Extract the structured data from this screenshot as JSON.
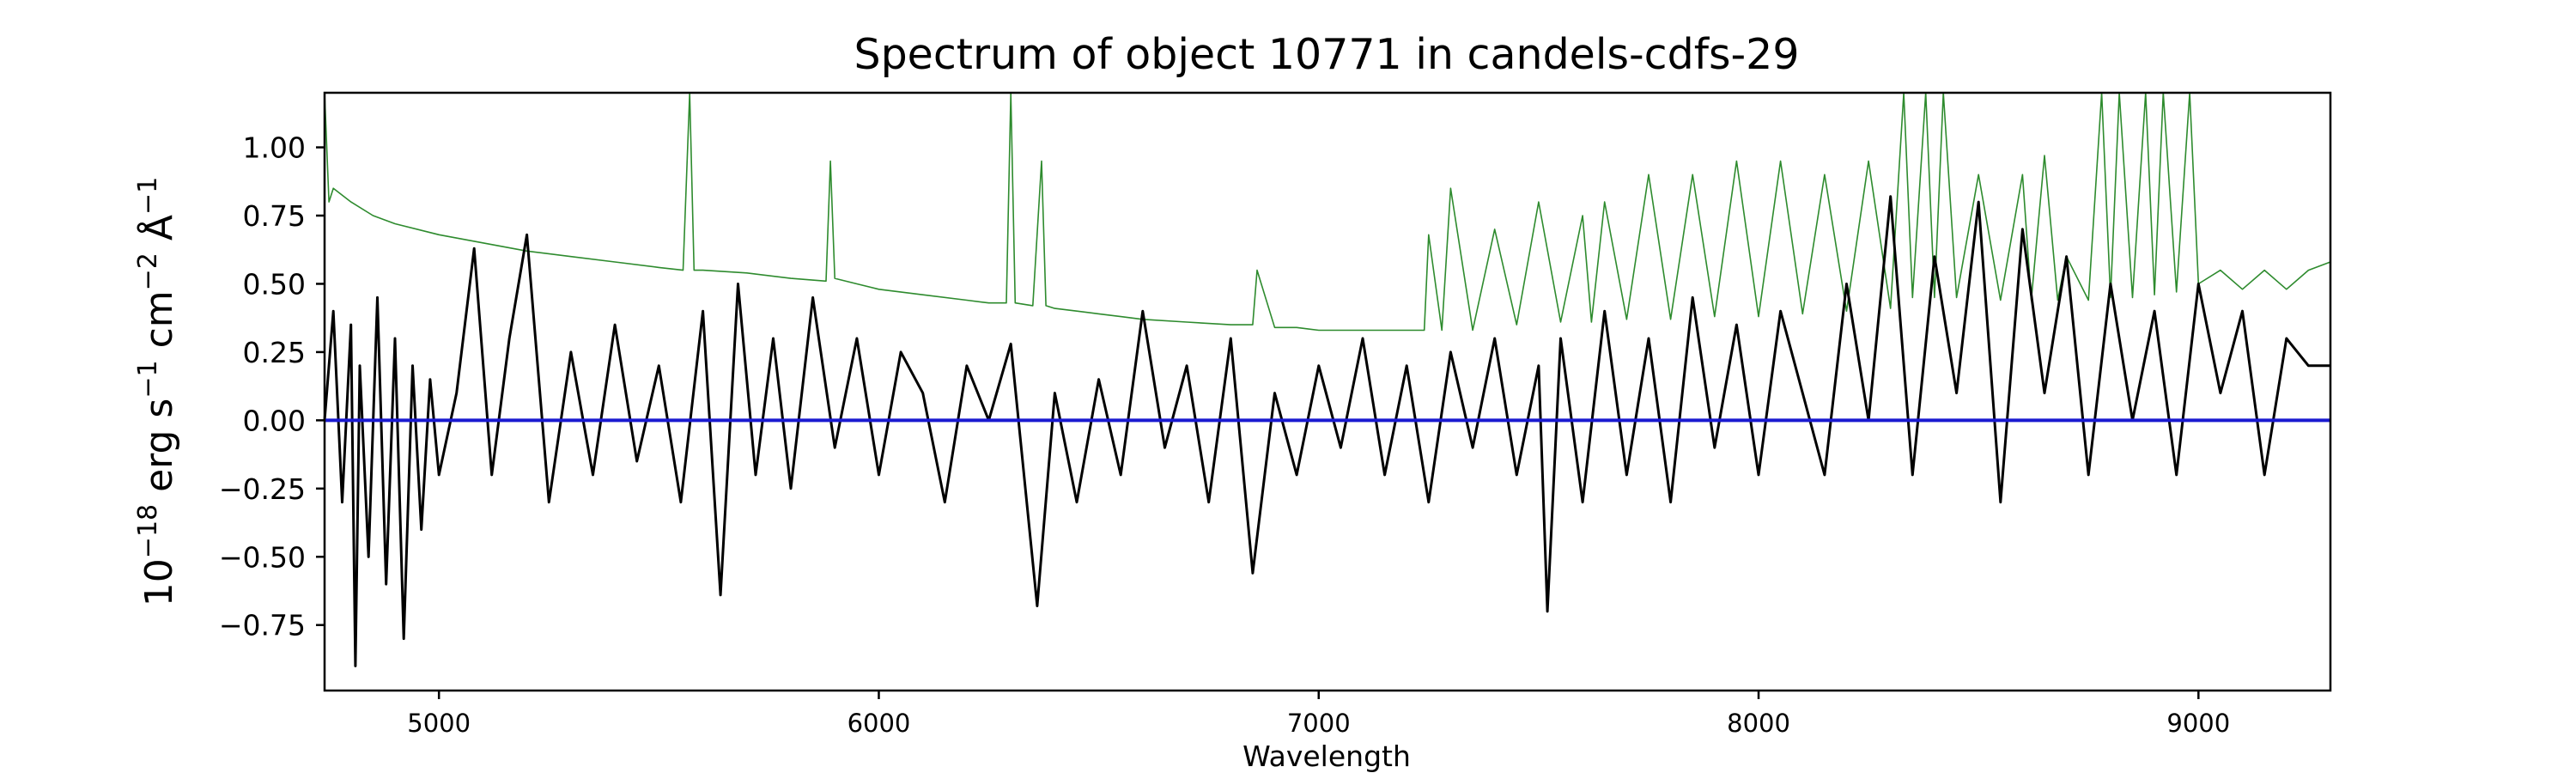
{
  "chart_data": {
    "type": "line",
    "title": "Spectrum of object 10771 in candels-cdfs-29",
    "xlabel": "Wavelength",
    "ylabel": {
      "base": "10",
      "exp1": "−18",
      "erg": " erg s",
      "exp2": "−1",
      "cm": " cm",
      "exp3": "−2",
      "ang": " Å",
      "exp4": "−1"
    },
    "xlim": [
      4740,
      9300
    ],
    "ylim": [
      -0.99,
      1.2
    ],
    "xticks": [
      {
        "value": 5000,
        "label": "5000"
      },
      {
        "value": 6000,
        "label": "6000"
      },
      {
        "value": 7000,
        "label": "7000"
      },
      {
        "value": 8000,
        "label": "8000"
      },
      {
        "value": 9000,
        "label": "9000"
      }
    ],
    "yticks": [
      {
        "value": -0.75,
        "label": "−0.75"
      },
      {
        "value": -0.5,
        "label": "−0.50"
      },
      {
        "value": -0.25,
        "label": "−0.25"
      },
      {
        "value": 0.0,
        "label": "0.00"
      },
      {
        "value": 0.25,
        "label": "0.25"
      },
      {
        "value": 0.5,
        "label": "0.50"
      },
      {
        "value": 0.75,
        "label": "0.75"
      },
      {
        "value": 1.0,
        "label": "1.00"
      }
    ],
    "grid": false,
    "series": [
      {
        "role": "flux",
        "color": "#000000",
        "x": [
          4740,
          4760,
          4780,
          4800,
          4810,
          4820,
          4840,
          4860,
          4880,
          4900,
          4920,
          4940,
          4960,
          4980,
          5000,
          5040,
          5080,
          5120,
          5160,
          5200,
          5250,
          5300,
          5350,
          5400,
          5450,
          5500,
          5550,
          5600,
          5640,
          5680,
          5720,
          5760,
          5800,
          5850,
          5900,
          5950,
          6000,
          6050,
          6100,
          6150,
          6200,
          6250,
          6300,
          6360,
          6400,
          6450,
          6500,
          6550,
          6600,
          6650,
          6700,
          6750,
          6800,
          6850,
          6900,
          6950,
          7000,
          7050,
          7100,
          7150,
          7200,
          7250,
          7300,
          7350,
          7400,
          7450,
          7500,
          7520,
          7550,
          7600,
          7650,
          7700,
          7750,
          7800,
          7850,
          7900,
          7950,
          8000,
          8050,
          8100,
          8150,
          8200,
          8250,
          8300,
          8350,
          8400,
          8450,
          8500,
          8550,
          8600,
          8650,
          8700,
          8750,
          8800,
          8850,
          8900,
          8950,
          9000,
          9050,
          9100,
          9150,
          9200,
          9250,
          9300
        ],
        "y": [
          0.0,
          0.4,
          -0.3,
          0.35,
          -0.9,
          0.2,
          -0.5,
          0.45,
          -0.6,
          0.3,
          -0.8,
          0.2,
          -0.4,
          0.15,
          -0.2,
          0.1,
          0.63,
          -0.2,
          0.3,
          0.68,
          -0.3,
          0.25,
          -0.2,
          0.35,
          -0.15,
          0.2,
          -0.3,
          0.4,
          -0.64,
          0.5,
          -0.2,
          0.3,
          -0.25,
          0.45,
          -0.1,
          0.3,
          -0.2,
          0.25,
          0.1,
          -0.3,
          0.2,
          0.0,
          0.28,
          -0.68,
          0.1,
          -0.3,
          0.15,
          -0.2,
          0.4,
          -0.1,
          0.2,
          -0.3,
          0.3,
          -0.56,
          0.1,
          -0.2,
          0.2,
          -0.1,
          0.3,
          -0.2,
          0.2,
          -0.3,
          0.25,
          -0.1,
          0.3,
          -0.2,
          0.2,
          -0.7,
          0.3,
          -0.3,
          0.4,
          -0.2,
          0.3,
          -0.3,
          0.45,
          -0.1,
          0.35,
          -0.2,
          0.4,
          0.1,
          -0.2,
          0.5,
          0.0,
          0.82,
          -0.2,
          0.6,
          0.1,
          0.8,
          -0.3,
          0.7,
          0.1,
          0.6,
          -0.2,
          0.5,
          0.0,
          0.4,
          -0.2,
          0.5,
          0.1,
          0.4,
          -0.2,
          0.3,
          0.2,
          0.2
        ]
      },
      {
        "role": "error",
        "color": "#2e8b2e",
        "x": [
          4740,
          4750,
          4760,
          4800,
          4850,
          4900,
          5000,
          5100,
          5200,
          5300,
          5400,
          5500,
          5555,
          5570,
          5580,
          5600,
          5700,
          5800,
          5880,
          5890,
          5900,
          5950,
          6000,
          6100,
          6200,
          6250,
          6290,
          6300,
          6310,
          6350,
          6370,
          6380,
          6400,
          6450,
          6500,
          6550,
          6600,
          6700,
          6800,
          6850,
          6860,
          6900,
          6950,
          7000,
          7100,
          7200,
          7240,
          7250,
          7280,
          7300,
          7350,
          7400,
          7450,
          7500,
          7550,
          7600,
          7620,
          7650,
          7700,
          7750,
          7800,
          7850,
          7900,
          7950,
          8000,
          8050,
          8100,
          8150,
          8200,
          8250,
          8300,
          8330,
          8350,
          8380,
          8400,
          8420,
          8450,
          8500,
          8550,
          8600,
          8620,
          8650,
          8680,
          8700,
          8750,
          8780,
          8800,
          8820,
          8850,
          8880,
          8900,
          8920,
          8950,
          8980,
          9000,
          9050,
          9100,
          9150,
          9200,
          9250,
          9300
        ],
        "y": [
          1.2,
          0.8,
          0.85,
          0.8,
          0.75,
          0.72,
          0.68,
          0.65,
          0.62,
          0.6,
          0.58,
          0.56,
          0.55,
          1.2,
          0.55,
          0.55,
          0.54,
          0.52,
          0.51,
          0.95,
          0.52,
          0.5,
          0.48,
          0.46,
          0.44,
          0.43,
          0.43,
          1.2,
          0.43,
          0.42,
          0.95,
          0.42,
          0.41,
          0.4,
          0.39,
          0.38,
          0.37,
          0.36,
          0.35,
          0.35,
          0.55,
          0.34,
          0.34,
          0.33,
          0.33,
          0.33,
          0.33,
          0.68,
          0.33,
          0.85,
          0.33,
          0.7,
          0.35,
          0.8,
          0.36,
          0.75,
          0.36,
          0.8,
          0.37,
          0.9,
          0.37,
          0.9,
          0.38,
          0.95,
          0.38,
          0.95,
          0.39,
          0.9,
          0.4,
          0.95,
          0.41,
          1.2,
          0.45,
          1.2,
          0.45,
          1.2,
          0.45,
          0.9,
          0.44,
          0.9,
          0.44,
          0.97,
          0.44,
          0.6,
          0.44,
          1.2,
          0.45,
          1.2,
          0.45,
          1.2,
          0.46,
          1.2,
          0.47,
          1.2,
          0.5,
          0.55,
          0.48,
          0.55,
          0.48,
          0.55,
          0.58
        ]
      },
      {
        "role": "zero",
        "color": "#1a1ad0",
        "x": [
          4740,
          9300
        ],
        "y": [
          0.0,
          0.0
        ]
      }
    ]
  }
}
